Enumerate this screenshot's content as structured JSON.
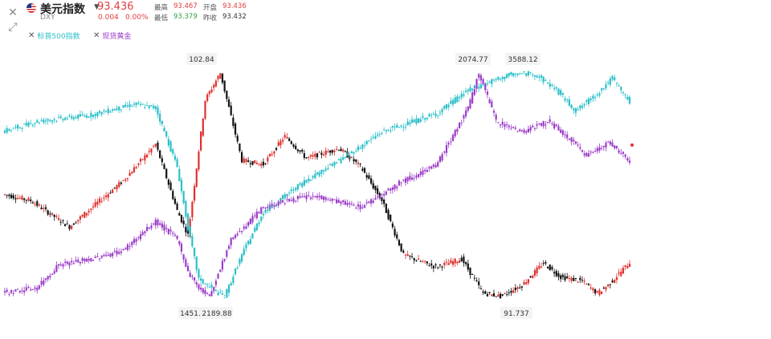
{
  "header": {
    "name": "美元指数",
    "code": "DXY",
    "price": "93.436",
    "change": "0.004",
    "change_pct": "0.00%",
    "quotes": [
      {
        "label": "最高",
        "value": "93.467",
        "color": "#e03d3d"
      },
      {
        "label": "开盘",
        "value": "93.436",
        "color": "#e03d3d"
      },
      {
        "label": "最低",
        "value": "93.379",
        "color": "#2ea043"
      },
      {
        "label": "昨收",
        "value": "93.432",
        "color": "#333333"
      }
    ],
    "icons": {
      "close": "close-icon",
      "expand": "expand-arrows-icon",
      "caret": "caret-down-icon",
      "flag": "us-flag-icon"
    }
  },
  "legend": [
    {
      "name": "标普500指数",
      "color": "#2bbfc8"
    },
    {
      "name": "现货黄金",
      "color": "#9c3cc8"
    }
  ],
  "colors": {
    "up": "#e0302e",
    "down": "#111111",
    "spx": "#2bbfc8",
    "gold": "#9c3cc8"
  },
  "chart_data": {
    "type": "candlestick-comparison",
    "series": [
      {
        "name": "美元指数",
        "style": "red-black",
        "low": 91.737,
        "high": 102.84,
        "key": [
          [
            0,
            96.8
          ],
          [
            12,
            96.5
          ],
          [
            30,
            95.2
          ],
          [
            55,
            97.5
          ],
          [
            70,
            99.3
          ],
          [
            80,
            96.0
          ],
          [
            85,
            94.8
          ],
          [
            93,
            101.5
          ],
          [
            100,
            102.84
          ],
          [
            110,
            98.5
          ],
          [
            120,
            98.3
          ],
          [
            130,
            99.7
          ],
          [
            140,
            98.6
          ],
          [
            155,
            99.1
          ],
          [
            165,
            98.2
          ],
          [
            175,
            96.5
          ],
          [
            185,
            93.8
          ],
          [
            200,
            93.2
          ],
          [
            212,
            93.6
          ],
          [
            222,
            91.9
          ],
          [
            230,
            91.737
          ],
          [
            240,
            92.3
          ],
          [
            250,
            93.4
          ],
          [
            258,
            92.7
          ],
          [
            268,
            92.5
          ],
          [
            275,
            91.9
          ],
          [
            280,
            92.3
          ],
          [
            290,
            93.436
          ]
        ]
      },
      {
        "name": "标普500指数",
        "style": "teal",
        "low": 2189.88,
        "high": 3588.12,
        "key": [
          [
            0,
            3225
          ],
          [
            15,
            3285
          ],
          [
            40,
            3325
          ],
          [
            60,
            3392
          ],
          [
            70,
            3370
          ],
          [
            80,
            3000
          ],
          [
            85,
            2620
          ],
          [
            90,
            2300
          ],
          [
            98,
            2220
          ],
          [
            102,
            2189.88
          ],
          [
            110,
            2450
          ],
          [
            120,
            2720
          ],
          [
            140,
            2920
          ],
          [
            160,
            3080
          ],
          [
            175,
            3220
          ],
          [
            200,
            3330
          ],
          [
            215,
            3480
          ],
          [
            235,
            3580
          ],
          [
            245,
            3588.12
          ],
          [
            255,
            3495
          ],
          [
            265,
            3350
          ],
          [
            275,
            3460
          ],
          [
            282,
            3555
          ],
          [
            290,
            3405
          ]
        ]
      },
      {
        "name": "现货黄金",
        "style": "purple",
        "low": 1451.0,
        "high": 2074.77,
        "key": [
          [
            0,
            1462
          ],
          [
            15,
            1475
          ],
          [
            25,
            1540
          ],
          [
            40,
            1555
          ],
          [
            55,
            1580
          ],
          [
            70,
            1660
          ],
          [
            80,
            1612
          ],
          [
            85,
            1520
          ],
          [
            90,
            1475
          ],
          [
            95,
            1451.0
          ],
          [
            105,
            1610
          ],
          [
            120,
            1700
          ],
          [
            135,
            1725
          ],
          [
            145,
            1730
          ],
          [
            165,
            1700
          ],
          [
            185,
            1775
          ],
          [
            200,
            1815
          ],
          [
            215,
            1975
          ],
          [
            220,
            2074.77
          ],
          [
            228,
            1940
          ],
          [
            240,
            1910
          ],
          [
            252,
            1940
          ],
          [
            262,
            1890
          ],
          [
            270,
            1845
          ],
          [
            280,
            1880
          ],
          [
            290,
            1830
          ]
        ]
      }
    ],
    "annotations": [
      {
        "text": "102.84"
      },
      {
        "text": "1451."
      },
      {
        "text": "2189.88"
      },
      {
        "text": "2074.77"
      },
      {
        "text": "3588.12"
      },
      {
        "text": "91.737"
      }
    ]
  }
}
